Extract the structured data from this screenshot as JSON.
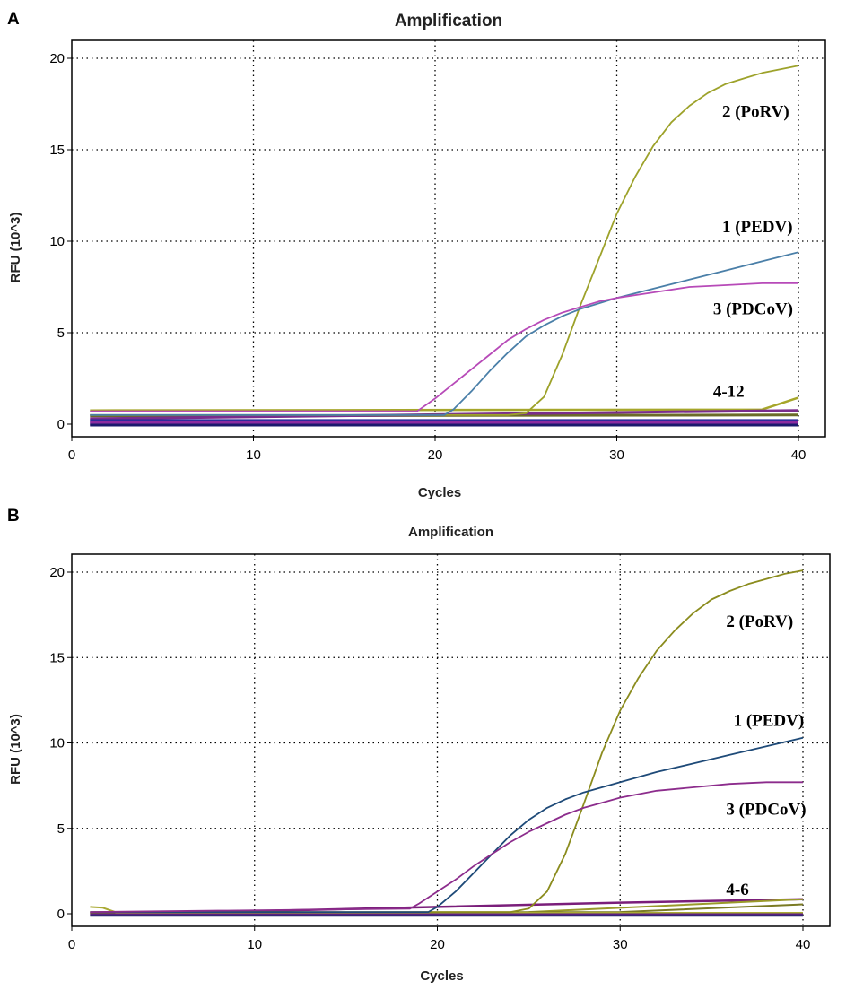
{
  "chart_data": [
    {
      "panel": "A",
      "type": "line",
      "title": "Amplification",
      "xlabel": "Cycles",
      "ylabel": "RFU (10^3)",
      "xlim": [
        0,
        40
      ],
      "ylim": [
        0,
        20
      ],
      "xticks": [
        0,
        10,
        20,
        30,
        40
      ],
      "yticks": [
        0,
        5,
        10,
        15,
        20
      ],
      "grid": true,
      "annotations": [
        {
          "text": "2 (PoRV)",
          "x": 35.8,
          "y": 16.8
        },
        {
          "text": "1 (PEDV)",
          "x": 35.8,
          "y": 10.5
        },
        {
          "text": "3 (PDCoV)",
          "x": 35.3,
          "y": 6.0
        },
        {
          "text": "4-12",
          "x": 35.3,
          "y": 1.5
        }
      ],
      "series": [
        {
          "name": "2 (PoRV)",
          "color": "#9da22a",
          "x": [
            1,
            24,
            25,
            26,
            27,
            28,
            29,
            30,
            31,
            32,
            33,
            34,
            35,
            36,
            37,
            38,
            39,
            40
          ],
          "y": [
            0.5,
            0.5,
            0.6,
            1.5,
            3.8,
            6.5,
            9.0,
            11.5,
            13.5,
            15.2,
            16.5,
            17.4,
            18.1,
            18.6,
            18.9,
            19.2,
            19.4,
            19.6
          ]
        },
        {
          "name": "1 (PEDV)",
          "color": "#4a7fa8",
          "x": [
            1,
            20.5,
            21,
            22,
            23,
            24,
            25,
            26,
            27,
            28,
            29,
            30,
            32,
            34,
            36,
            38,
            40
          ],
          "y": [
            0.5,
            0.5,
            0.8,
            1.8,
            2.9,
            3.9,
            4.8,
            5.4,
            5.9,
            6.3,
            6.6,
            6.9,
            7.4,
            7.9,
            8.4,
            8.9,
            9.4
          ]
        },
        {
          "name": "3 (PDCoV)",
          "color": "#b74ab8",
          "x": [
            1,
            19,
            20,
            21,
            22,
            23,
            24,
            25,
            26,
            27,
            28,
            29,
            30,
            32,
            34,
            36,
            38,
            40
          ],
          "y": [
            0.7,
            0.7,
            1.4,
            2.2,
            3.0,
            3.8,
            4.6,
            5.2,
            5.7,
            6.1,
            6.4,
            6.7,
            6.9,
            7.2,
            7.5,
            7.6,
            7.7,
            7.7
          ]
        },
        {
          "name": "4-12 a",
          "color": "#a6a62a",
          "width": 2.5,
          "x": [
            1,
            38,
            40
          ],
          "y": [
            0.75,
            0.8,
            1.45
          ]
        },
        {
          "name": "4-12 b",
          "color": "#6b6b28",
          "width": 3,
          "x": [
            1,
            40
          ],
          "y": [
            0.45,
            0.5
          ]
        },
        {
          "name": "4-12 c",
          "color": "#7a2c8c",
          "width": 3,
          "x": [
            1,
            40
          ],
          "y": [
            0.3,
            0.75
          ]
        },
        {
          "name": "4-12 d",
          "color": "#2c2c9c",
          "width": 5,
          "x": [
            1,
            40
          ],
          "y": [
            0.15,
            0.15
          ]
        },
        {
          "name": "4-12 e",
          "color": "#8c2ca0",
          "width": 5,
          "x": [
            1,
            40
          ],
          "y": [
            0.05,
            0.05
          ]
        },
        {
          "name": "4-12 f",
          "color": "#1a1a6e",
          "width": 3,
          "x": [
            1,
            40
          ],
          "y": [
            -0.05,
            -0.05
          ]
        }
      ]
    },
    {
      "panel": "B",
      "type": "line",
      "title": "Amplification",
      "xlabel": "Cycles",
      "ylabel": "RFU (10^3)",
      "xlim": [
        0,
        40
      ],
      "ylim": [
        0,
        20
      ],
      "xticks": [
        0,
        10,
        20,
        30,
        40
      ],
      "yticks": [
        0,
        5,
        10,
        15,
        20
      ],
      "grid": true,
      "annotations": [
        {
          "text": "2 (PoRV)",
          "x": 35.8,
          "y": 16.8
        },
        {
          "text": "1 (PEDV)",
          "x": 36.2,
          "y": 11.0
        },
        {
          "text": "3 (PDCoV)",
          "x": 35.8,
          "y": 5.8
        },
        {
          "text": "4-6",
          "x": 35.8,
          "y": 1.1
        }
      ],
      "series": [
        {
          "name": "2 (PoRV)",
          "color": "#8b8c1e",
          "x": [
            1,
            24,
            25,
            26,
            27,
            28,
            29,
            30,
            31,
            32,
            33,
            34,
            35,
            36,
            37,
            38,
            39,
            40
          ],
          "y": [
            0.1,
            0.1,
            0.3,
            1.3,
            3.5,
            6.4,
            9.4,
            11.9,
            13.8,
            15.4,
            16.6,
            17.6,
            18.4,
            18.9,
            19.3,
            19.6,
            19.9,
            20.1
          ]
        },
        {
          "name": "1 (PEDV)",
          "color": "#1e4a78",
          "x": [
            1,
            19.5,
            20,
            21,
            22,
            23,
            24,
            25,
            26,
            27,
            28,
            29,
            30,
            32,
            34,
            36,
            38,
            40
          ],
          "y": [
            0.1,
            0.1,
            0.4,
            1.3,
            2.4,
            3.5,
            4.6,
            5.5,
            6.2,
            6.7,
            7.1,
            7.4,
            7.7,
            8.3,
            8.8,
            9.3,
            9.8,
            10.3
          ]
        },
        {
          "name": "3 (PDCoV)",
          "color": "#8c2c8c",
          "x": [
            1,
            18.5,
            19,
            20,
            21,
            22,
            23,
            24,
            25,
            26,
            27,
            28,
            29,
            30,
            32,
            34,
            36,
            38,
            40
          ],
          "y": [
            0.1,
            0.3,
            0.6,
            1.3,
            2.0,
            2.8,
            3.5,
            4.2,
            4.8,
            5.3,
            5.8,
            6.2,
            6.5,
            6.8,
            7.2,
            7.4,
            7.6,
            7.7,
            7.7
          ]
        },
        {
          "name": "4-6 a",
          "color": "#7a1e7a",
          "width": 2.5,
          "x": [
            1,
            10,
            20,
            30,
            40
          ],
          "y": [
            0.05,
            0.15,
            0.4,
            0.65,
            0.85
          ]
        },
        {
          "name": "4-6 b",
          "color": "#9a9a2a",
          "width": 2,
          "x": [
            1,
            25,
            40
          ],
          "y": [
            0.05,
            0.1,
            0.85
          ]
        },
        {
          "name": "4-6 c",
          "color": "#7a7a24",
          "width": 2,
          "x": [
            1,
            30,
            40
          ],
          "y": [
            0.0,
            0.1,
            0.55
          ]
        },
        {
          "name": "4-6 d",
          "color": "#aaaa34",
          "width": 2,
          "x": [
            1,
            1.7,
            2.5,
            40
          ],
          "y": [
            0.4,
            0.35,
            0.05,
            0.05
          ]
        },
        {
          "name": "4-6 e",
          "color": "#5a1e80",
          "width": 3,
          "x": [
            1,
            40
          ],
          "y": [
            -0.05,
            -0.05
          ]
        },
        {
          "name": "4-6 f",
          "color": "#2a2a70",
          "width": 2,
          "x": [
            1,
            40
          ],
          "y": [
            -0.12,
            -0.12
          ]
        }
      ]
    }
  ]
}
